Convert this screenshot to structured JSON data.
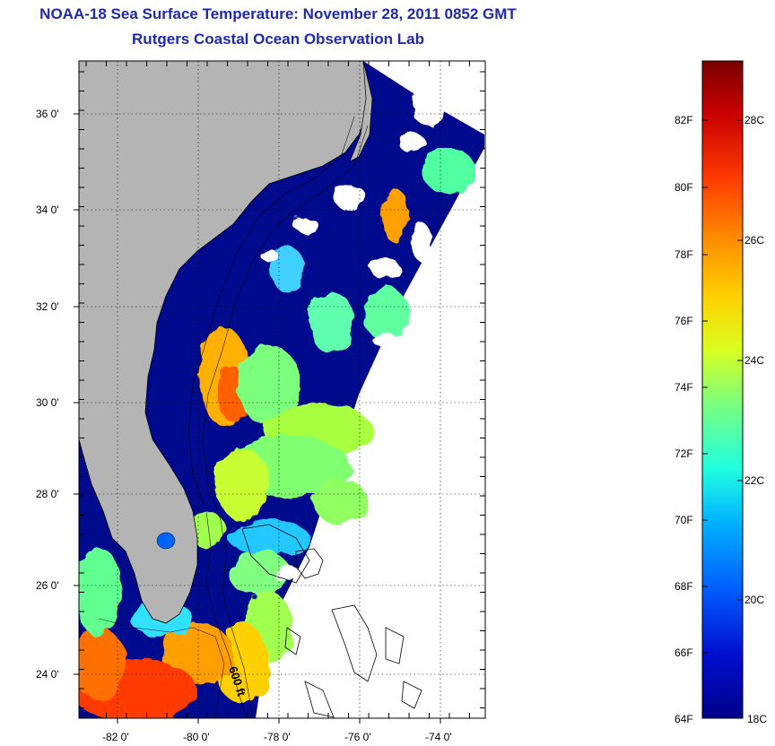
{
  "header": {
    "title": "NOAA-18 Sea Surface Temperature:  November 28, 2011 0852 GMT",
    "subtitle": "Rutgers Coastal Ocean Observation Lab"
  },
  "map": {
    "lat_labels": [
      "36 0'",
      "34 0'",
      "32 0'",
      "30 0'",
      "28 0'",
      "26 0'",
      "24 0'"
    ],
    "lon_labels": [
      "-82 0'",
      "-80 0'",
      "-78 0'",
      "-76 0'",
      "-74 0'"
    ],
    "contour_label": "600 ft",
    "land_color": "#b4b4b4",
    "missing_data_color": "#ffffff"
  },
  "colorbar": {
    "fahrenheit_labels": [
      "82F",
      "80F",
      "78F",
      "76F",
      "74F",
      "72F",
      "70F",
      "68F",
      "66F",
      "64F"
    ],
    "celsius_labels": [
      "28C",
      "26C",
      "24C",
      "22C",
      "20C",
      "18C"
    ],
    "colors": [
      "#7a0000",
      "#c80000",
      "#ff3c00",
      "#ff8c00",
      "#ffd200",
      "#d8ff20",
      "#7cff7c",
      "#20ffe0",
      "#00b4ff",
      "#0060ff",
      "#0010d0",
      "#00008a"
    ]
  }
}
